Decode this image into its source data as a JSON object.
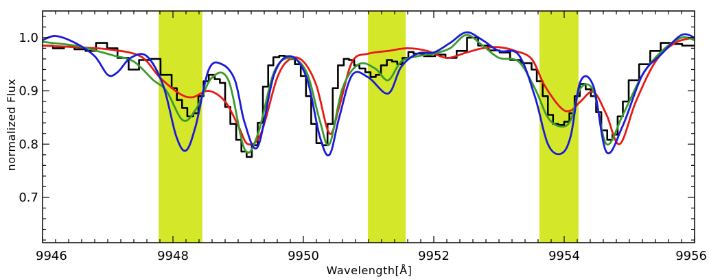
{
  "chart_data": {
    "type": "line",
    "title": "",
    "xlabel": "Wavelength[Å]",
    "ylabel": "normalized Flux",
    "xlim": [
      9946,
      9956
    ],
    "ylim": [
      0.615,
      1.05
    ],
    "x_ticks": [
      9946,
      9948,
      9950,
      9952,
      9954,
      9956
    ],
    "x_tick_labels": [
      "9946",
      "9948",
      "9950",
      "9952",
      "9954",
      "9956"
    ],
    "y_ticks": [
      0.7,
      0.8,
      0.9,
      1.0
    ],
    "y_tick_labels": [
      "0.7",
      "0.8",
      "0.9",
      "1.0"
    ],
    "grid": false,
    "highlight_bands": [
      {
        "x0": 9947.78,
        "x1": 9948.45,
        "color": "#d4e829"
      },
      {
        "x0": 9950.99,
        "x1": 9951.57,
        "color": "#d4e829"
      },
      {
        "x0": 9953.62,
        "x1": 9954.22,
        "color": "#d4e829"
      }
    ],
    "series": [
      {
        "style": "step",
        "color": "#000000",
        "x": [
          9946.0,
          9946.16,
          9946.33,
          9946.49,
          9946.66,
          9946.82,
          9946.99,
          9947.15,
          9947.32,
          9947.48,
          9947.65,
          9947.81,
          9947.98,
          9948.06,
          9948.14,
          9948.22,
          9948.31,
          9948.39,
          9948.47,
          9948.55,
          9948.64,
          9948.72,
          9948.8,
          9948.88,
          9948.97,
          9949.05,
          9949.13,
          9949.21,
          9949.3,
          9949.38,
          9949.46,
          9949.54,
          9949.63,
          9949.71,
          9949.79,
          9949.87,
          9949.96,
          9950.04,
          9950.12,
          9950.2,
          9950.29,
          9950.37,
          9950.45,
          9950.53,
          9950.62,
          9950.7,
          9950.78,
          9950.86,
          9950.95,
          9951.03,
          9951.11,
          9951.19,
          9951.28,
          9951.36,
          9951.44,
          9951.52,
          9951.61,
          9951.69,
          9951.85,
          9952.02,
          9952.18,
          9952.35,
          9952.51,
          9952.68,
          9952.84,
          9953.01,
          9953.17,
          9953.34,
          9953.5,
          9953.58,
          9953.67,
          9953.75,
          9953.83,
          9953.91,
          9954.0,
          9954.08,
          9954.16,
          9954.24,
          9954.33,
          9954.41,
          9954.49,
          9954.57,
          9954.66,
          9954.74,
          9954.82,
          9954.9,
          9954.99,
          9955.15,
          9955.32,
          9955.48,
          9955.65,
          9955.81
        ],
        "values": [
          0.985,
          0.98,
          0.983,
          0.978,
          0.975,
          0.99,
          0.98,
          0.962,
          0.94,
          0.958,
          0.96,
          0.93,
          0.905,
          0.883,
          0.868,
          0.852,
          0.858,
          0.89,
          0.918,
          0.93,
          0.922,
          0.915,
          0.87,
          0.838,
          0.808,
          0.786,
          0.776,
          0.798,
          0.84,
          0.908,
          0.948,
          0.963,
          0.966,
          0.965,
          0.96,
          0.95,
          0.928,
          0.89,
          0.838,
          0.802,
          0.798,
          0.838,
          0.905,
          0.948,
          0.96,
          0.958,
          0.948,
          0.942,
          0.935,
          0.926,
          0.93,
          0.948,
          0.958,
          0.955,
          0.95,
          0.962,
          0.973,
          0.97,
          0.965,
          0.968,
          0.962,
          0.975,
          1.0,
          0.985,
          0.976,
          0.972,
          0.958,
          0.952,
          0.94,
          0.918,
          0.89,
          0.855,
          0.838,
          0.836,
          0.842,
          0.858,
          0.89,
          0.913,
          0.903,
          0.89,
          0.86,
          0.826,
          0.808,
          0.818,
          0.852,
          0.88,
          0.92,
          0.95,
          0.975,
          0.99,
          0.988,
          0.985
        ]
      },
      {
        "style": "line",
        "color": "#e61a14",
        "x": [
          9946.0,
          9946.5,
          9947.0,
          9947.5,
          9947.8,
          9948.1,
          9948.3,
          9948.55,
          9948.8,
          9949.0,
          9949.15,
          9949.35,
          9949.6,
          9949.8,
          9950.0,
          9950.2,
          9950.4,
          9950.55,
          9950.75,
          9951.0,
          9951.3,
          9951.6,
          9951.9,
          9952.2,
          9952.5,
          9952.75,
          9953.0,
          9953.25,
          9953.5,
          9953.7,
          9953.95,
          9954.1,
          9954.25,
          9954.45,
          9954.65,
          9954.85,
          9955.1,
          9955.4,
          9955.7,
          9956.0
        ],
        "values": [
          0.985,
          0.982,
          0.978,
          0.965,
          0.925,
          0.895,
          0.888,
          0.9,
          0.88,
          0.835,
          0.8,
          0.82,
          0.925,
          0.96,
          0.955,
          0.91,
          0.82,
          0.87,
          0.955,
          0.97,
          0.975,
          0.98,
          0.975,
          0.962,
          0.972,
          0.98,
          0.982,
          0.975,
          0.96,
          0.91,
          0.868,
          0.863,
          0.88,
          0.898,
          0.855,
          0.8,
          0.88,
          0.955,
          0.99,
          1.0
        ]
      },
      {
        "style": "line",
        "color": "#3a9a2c",
        "x": [
          9946.0,
          9946.5,
          9946.8,
          9947.1,
          9947.4,
          9947.7,
          9947.9,
          9948.15,
          9948.35,
          9948.6,
          9948.85,
          9949.1,
          9949.3,
          9949.55,
          9949.8,
          9950.05,
          9950.25,
          9950.4,
          9950.6,
          9950.85,
          9951.1,
          9951.3,
          9951.5,
          9951.75,
          9952.0,
          9952.25,
          9952.5,
          9952.75,
          9953.0,
          9953.3,
          9953.55,
          9953.75,
          9953.95,
          9954.1,
          9954.25,
          9954.45,
          9954.65,
          9954.9,
          9955.2,
          9955.5,
          9955.8,
          9956.0
        ],
        "values": [
          0.992,
          0.985,
          0.976,
          0.966,
          0.955,
          0.92,
          0.9,
          0.845,
          0.865,
          0.925,
          0.92,
          0.79,
          0.818,
          0.935,
          0.962,
          0.935,
          0.845,
          0.8,
          0.905,
          0.95,
          0.942,
          0.92,
          0.955,
          0.965,
          0.97,
          0.98,
          1.005,
          0.985,
          0.962,
          0.955,
          0.905,
          0.85,
          0.833,
          0.845,
          0.905,
          0.9,
          0.8,
          0.855,
          0.93,
          0.975,
          1.0,
          0.995
        ]
      },
      {
        "style": "line",
        "color": "#1a1ad8",
        "x": [
          9946.0,
          9946.2,
          9946.5,
          9946.8,
          9947.0,
          9947.15,
          9947.35,
          9947.6,
          9947.85,
          9948.05,
          9948.2,
          9948.35,
          9948.55,
          9948.75,
          9948.95,
          9949.1,
          9949.3,
          9949.55,
          9949.8,
          9950.05,
          9950.25,
          9950.4,
          9950.55,
          9950.75,
          9951.0,
          9951.3,
          9951.5,
          9951.75,
          9952.0,
          9952.25,
          9952.5,
          9952.75,
          9953.0,
          9953.3,
          9953.55,
          9953.75,
          9953.95,
          9954.1,
          9954.25,
          9954.45,
          9954.65,
          9954.9,
          9955.2,
          9955.5,
          9955.8,
          9956.0
        ],
        "values": [
          0.995,
          1.003,
          0.99,
          0.965,
          0.93,
          0.935,
          0.962,
          0.965,
          0.91,
          0.815,
          0.788,
          0.835,
          0.94,
          0.95,
          0.92,
          0.84,
          0.795,
          0.93,
          0.965,
          0.925,
          0.815,
          0.78,
          0.85,
          0.93,
          0.925,
          0.895,
          0.945,
          0.97,
          0.972,
          0.99,
          1.01,
          0.995,
          0.975,
          0.968,
          0.89,
          0.8,
          0.782,
          0.815,
          0.918,
          0.908,
          0.785,
          0.835,
          0.93,
          0.97,
          1.005,
          1.0
        ]
      }
    ]
  }
}
